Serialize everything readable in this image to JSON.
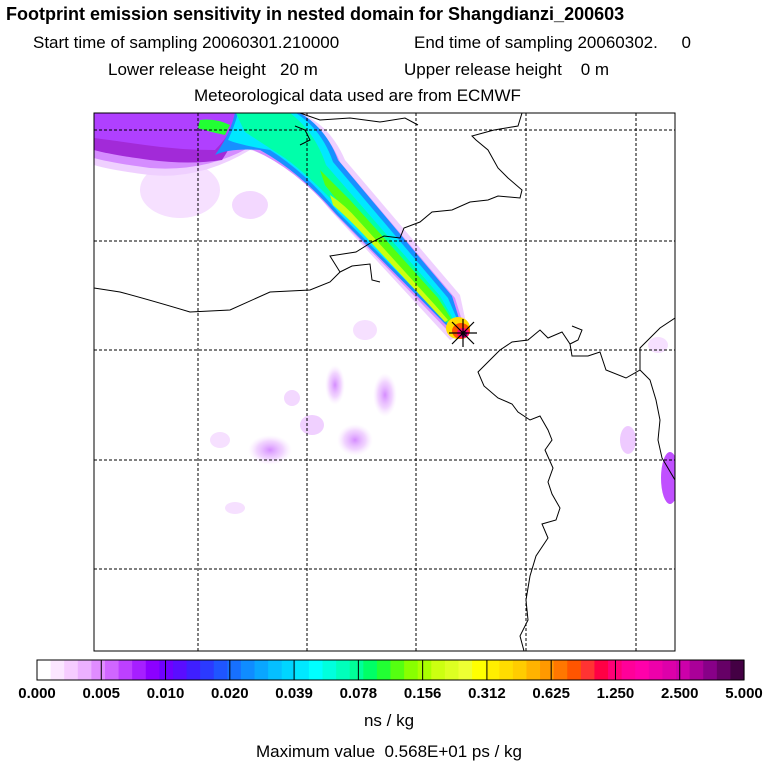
{
  "header": {
    "title": "Footprint emission sensitivity in nested domain for Shangdianzi_200603",
    "start_time": "Start time of sampling 20060301.210000",
    "end_time": "End time of sampling 20060302.     0",
    "lower_release": "Lower release height   20 m",
    "upper_release": "Upper release height    0 m",
    "met_data": "Meteorological data used are from ECMWF"
  },
  "map": {
    "station": "Shangdianzi",
    "station_marker": "asterisk"
  },
  "colorbar": {
    "tick_labels": [
      "0.000",
      "0.005",
      "0.010",
      "0.020",
      "0.039",
      "0.078",
      "0.156",
      "0.312",
      "0.625",
      "1.250",
      "2.500",
      "5.000"
    ],
    "colors": [
      "#ffffff",
      "#fbe6ff",
      "#f6ccff",
      "#ecb0ff",
      "#e08cff",
      "#d066ff",
      "#bd40ff",
      "#a61fff",
      "#8c00ff",
      "#7000ff",
      "#5a0dff",
      "#3f1fff",
      "#2b3aff",
      "#1f55ff",
      "#1770ff",
      "#0f8cff",
      "#09a6ff",
      "#05bfff",
      "#00d5ff",
      "#00e8ff",
      "#00ffff",
      "#00ffdd",
      "#00ffbb",
      "#00ff99",
      "#00ff66",
      "#22ff33",
      "#55ff11",
      "#88ff00",
      "#aaff00",
      "#ccff11",
      "#ddff22",
      "#eeff33",
      "#ffff00",
      "#ffee00",
      "#ffdd00",
      "#ffcc00",
      "#ffb300",
      "#ff9900",
      "#ff7700",
      "#ff5500",
      "#ff3333",
      "#ff0044",
      "#ff0077",
      "#ff0099",
      "#ff00aa",
      "#ee00aa",
      "#dd00aa",
      "#cc00aa",
      "#aa0099",
      "#880088",
      "#660066",
      "#440044"
    ],
    "units": "ns / kg",
    "max_value": "Maximum value  0.568E+01 ps / kg"
  }
}
